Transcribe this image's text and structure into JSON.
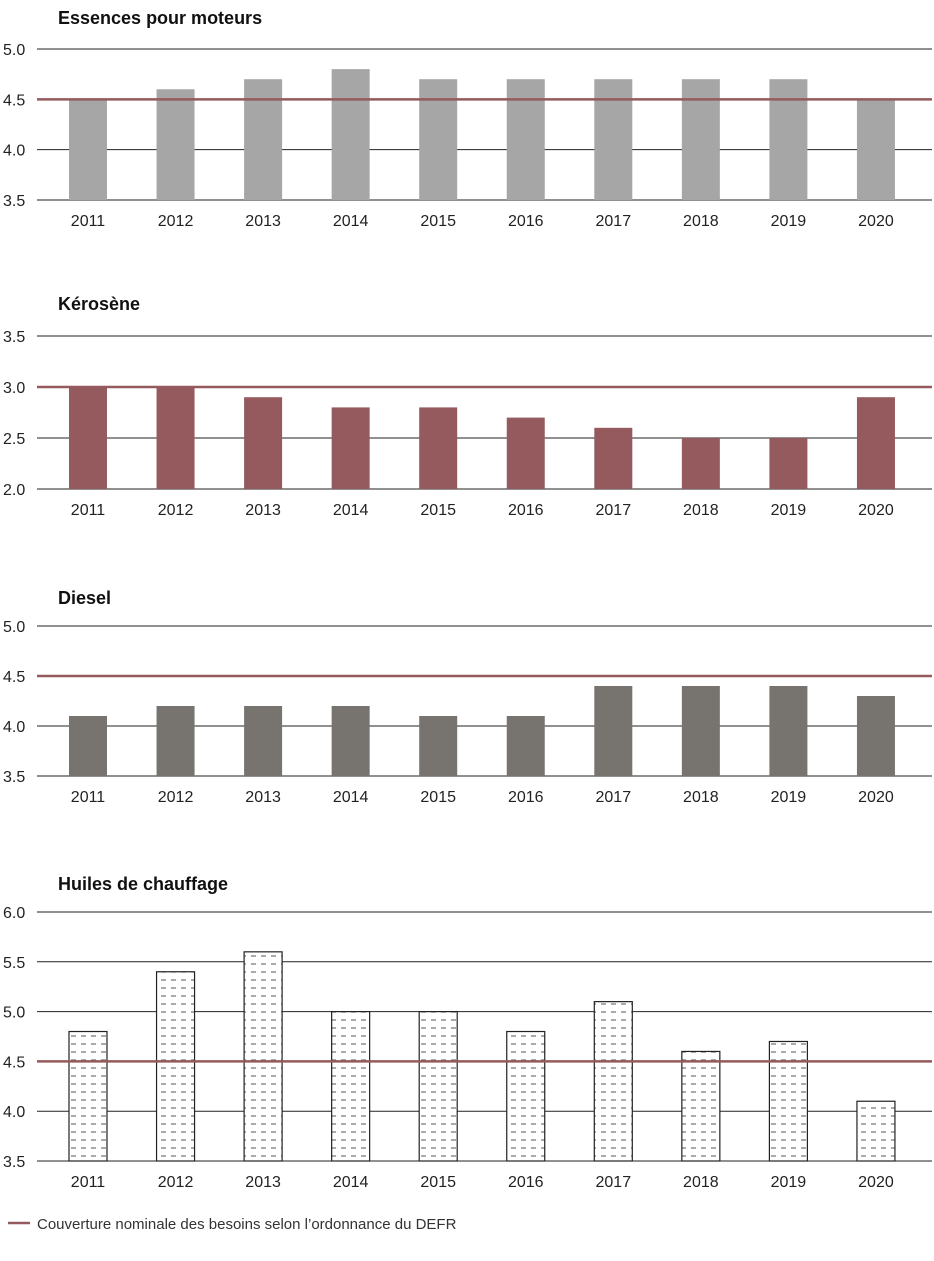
{
  "chart_data": [
    {
      "type": "bar",
      "title": "Essences pour moteurs",
      "categories": [
        "2011",
        "2012",
        "2013",
        "2014",
        "2015",
        "2016",
        "2017",
        "2018",
        "2019",
        "2020"
      ],
      "values": [
        4.5,
        4.6,
        4.7,
        4.8,
        4.7,
        4.7,
        4.7,
        4.7,
        4.7,
        4.5
      ],
      "ylim": [
        3.5,
        5.0
      ],
      "yticks": [
        "3.5",
        "4.0",
        "4.5",
        "5.0"
      ],
      "reference": 4.5,
      "bar_color": "#a6a6a6",
      "pattern": "solid"
    },
    {
      "type": "bar",
      "title": "Kérosène",
      "categories": [
        "2011",
        "2012",
        "2013",
        "2014",
        "2015",
        "2016",
        "2017",
        "2018",
        "2019",
        "2020"
      ],
      "values": [
        3.0,
        3.0,
        2.9,
        2.8,
        2.8,
        2.7,
        2.6,
        2.5,
        2.5,
        2.9
      ],
      "ylim": [
        2.0,
        3.5
      ],
      "yticks": [
        "2.0",
        "2.5",
        "3.0",
        "3.5"
      ],
      "reference": 3.0,
      "bar_color": "#955a5e",
      "pattern": "solid"
    },
    {
      "type": "bar",
      "title": "Diesel",
      "categories": [
        "2011",
        "2012",
        "2013",
        "2014",
        "2015",
        "2016",
        "2017",
        "2018",
        "2019",
        "2020"
      ],
      "values": [
        4.1,
        4.2,
        4.2,
        4.2,
        4.1,
        4.1,
        4.4,
        4.4,
        4.4,
        4.3
      ],
      "ylim": [
        3.5,
        5.0
      ],
      "yticks": [
        "3.5",
        "4.0",
        "4.5",
        "5.0"
      ],
      "reference": 4.5,
      "bar_color": "#77736e",
      "pattern": "solid"
    },
    {
      "type": "bar",
      "title": "Huiles de chauffage",
      "categories": [
        "2011",
        "2012",
        "2013",
        "2014",
        "2015",
        "2016",
        "2017",
        "2018",
        "2019",
        "2020"
      ],
      "values": [
        4.8,
        5.4,
        5.6,
        5.0,
        5.0,
        4.8,
        5.1,
        4.6,
        4.7,
        4.1
      ],
      "ylim": [
        3.5,
        6.0
      ],
      "yticks": [
        "3.5",
        "4.0",
        "4.5",
        "5.0",
        "5.5",
        "6.0"
      ],
      "reference": 4.5,
      "bar_color": "#ffffff",
      "pattern": "dashed"
    }
  ],
  "legend": {
    "label": "Couverture nominale des besoins selon l’ordonnance du DEFR",
    "color": "#955a5e"
  },
  "colors": {
    "reference_line": "#955a5e",
    "grid": "#222222"
  }
}
